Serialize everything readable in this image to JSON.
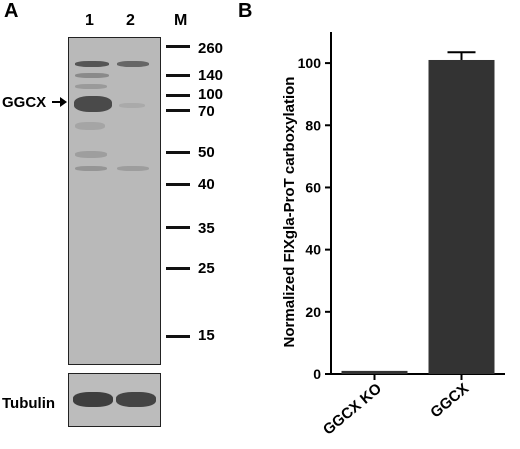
{
  "panel_a": {
    "letter": "A",
    "lanes": [
      "1",
      "2",
      "M"
    ],
    "markers": [
      "260",
      "140",
      "100",
      "70",
      "50",
      "40",
      "35",
      "25",
      "15"
    ],
    "ggcx_label": "GGCX",
    "tubulin_label": "Tubulin"
  },
  "panel_b": {
    "letter": "B"
  },
  "chart_data": {
    "type": "bar",
    "categories": [
      "GGCX KO",
      "GGCX"
    ],
    "values": [
      1,
      101
    ],
    "errors": [
      0,
      2.5
    ],
    "title": "",
    "xlabel": "",
    "ylabel": "Normalized FIXgla-ProT carboxylation",
    "ylim": [
      0,
      110
    ],
    "yticks": [
      0,
      20,
      40,
      60,
      80,
      100
    ],
    "bar_color": "#333333",
    "grid": false
  }
}
